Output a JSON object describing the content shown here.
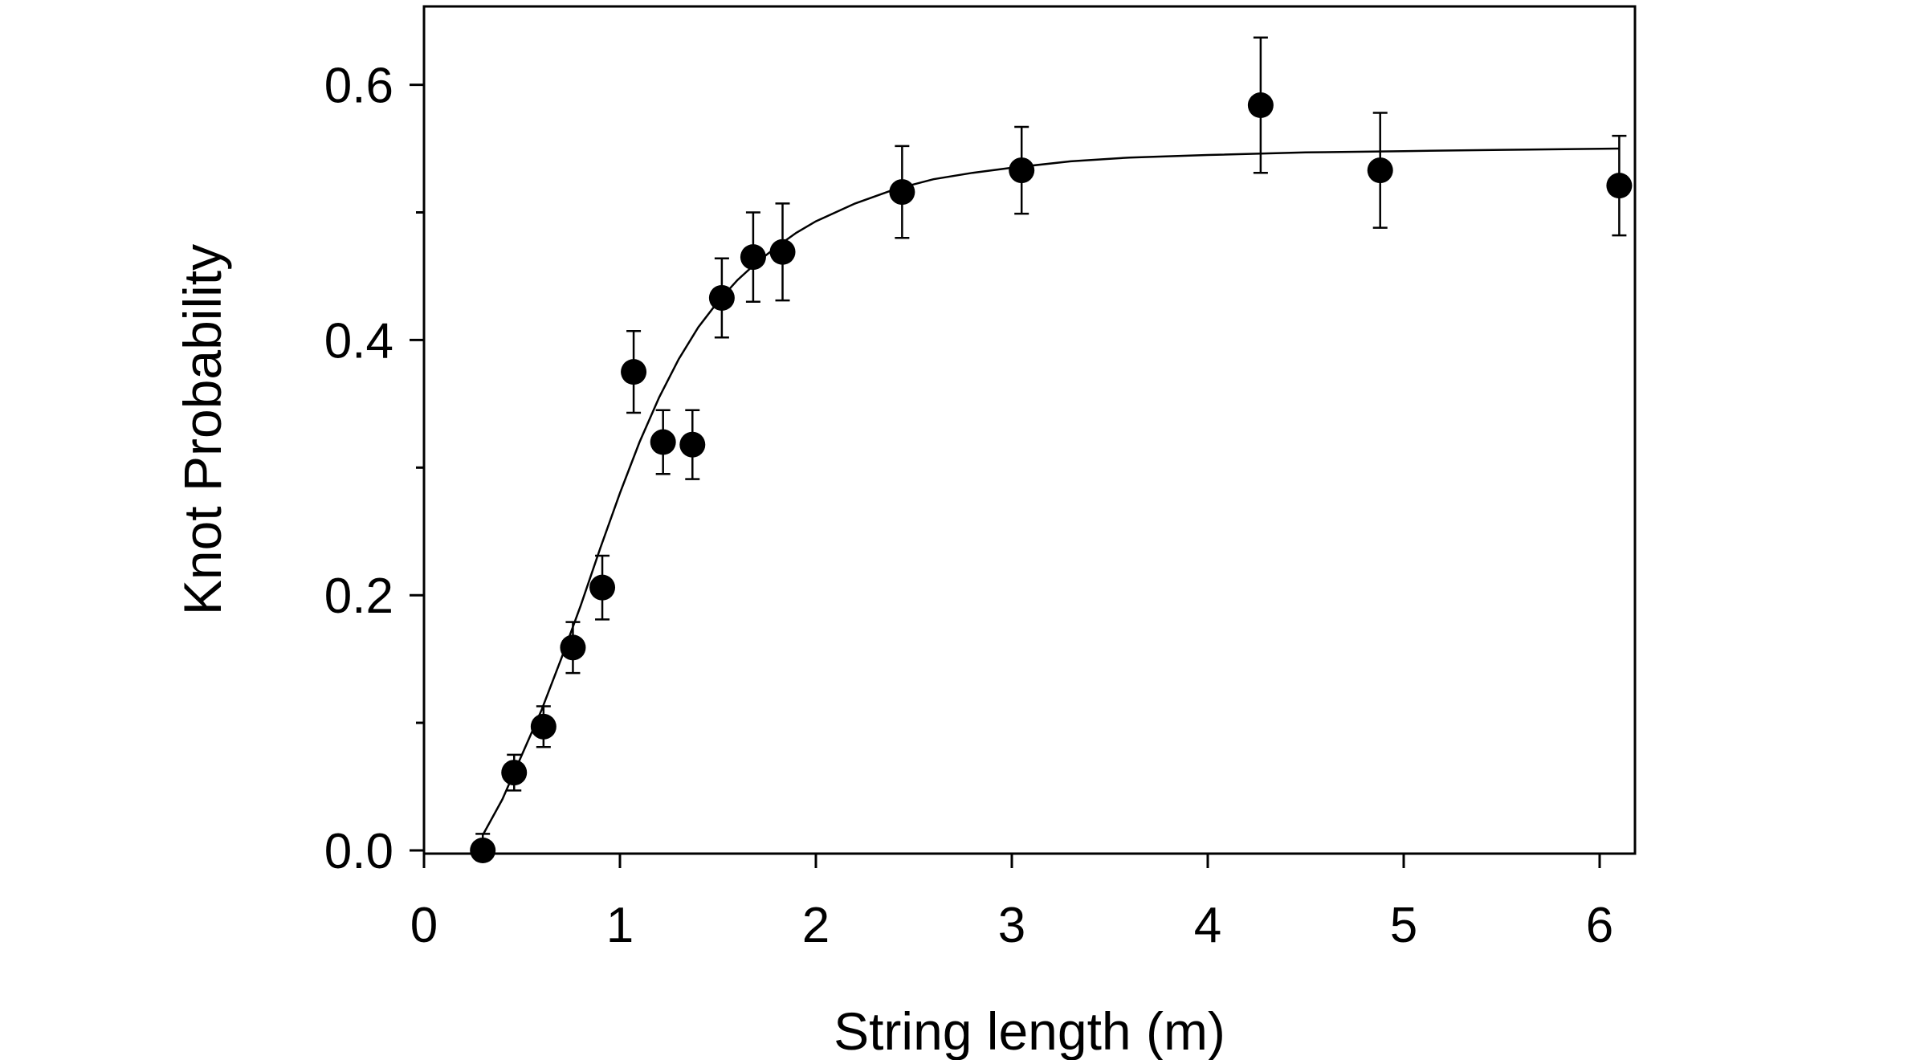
{
  "chart_data": {
    "type": "scatter",
    "xlabel": "String length (m)",
    "ylabel": "Knot Probability",
    "xlim": [
      0,
      6.2
    ],
    "ylim": [
      0,
      0.66
    ],
    "xticks": [
      "0",
      "1",
      "2",
      "3",
      "4",
      "5",
      "6"
    ],
    "xtick_values": [
      0,
      1,
      2,
      3,
      4,
      5,
      6
    ],
    "yticks": [
      "0.0",
      "0.2",
      "0.4",
      "0.6"
    ],
    "ytick_values": [
      0.0,
      0.2,
      0.4,
      0.6
    ],
    "yminor_values": [
      0.1,
      0.3,
      0.5
    ],
    "grid": false,
    "legend": "none",
    "series": [
      {
        "points": [
          {
            "x": 0.3,
            "y": 0.0,
            "err": 0.013
          },
          {
            "x": 0.46,
            "y": 0.061,
            "err": 0.014
          },
          {
            "x": 0.61,
            "y": 0.097,
            "err": 0.016
          },
          {
            "x": 0.76,
            "y": 0.159,
            "err": 0.02
          },
          {
            "x": 0.91,
            "y": 0.206,
            "err": 0.025
          },
          {
            "x": 1.07,
            "y": 0.375,
            "err": 0.032
          },
          {
            "x": 1.22,
            "y": 0.32,
            "err": 0.025
          },
          {
            "x": 1.37,
            "y": 0.318,
            "err": 0.027
          },
          {
            "x": 1.52,
            "y": 0.433,
            "err": 0.031
          },
          {
            "x": 1.68,
            "y": 0.465,
            "err": 0.035
          },
          {
            "x": 1.83,
            "y": 0.469,
            "err": 0.038
          },
          {
            "x": 2.44,
            "y": 0.516,
            "err": 0.036
          },
          {
            "x": 3.05,
            "y": 0.533,
            "err": 0.034
          },
          {
            "x": 4.27,
            "y": 0.584,
            "err": 0.053
          },
          {
            "x": 4.88,
            "y": 0.533,
            "err": 0.045
          },
          {
            "x": 6.1,
            "y": 0.521,
            "err": 0.039
          }
        ]
      }
    ],
    "fit_curve": {
      "x": [
        0.3,
        0.4,
        0.5,
        0.6,
        0.7,
        0.8,
        0.9,
        1.0,
        1.1,
        1.2,
        1.3,
        1.4,
        1.5,
        1.6,
        1.7,
        1.8,
        1.9,
        2.0,
        2.2,
        2.4,
        2.6,
        2.8,
        3.0,
        3.3,
        3.6,
        4.0,
        4.5,
        5.0,
        5.5,
        6.1
      ],
      "y": [
        0.012,
        0.04,
        0.075,
        0.11,
        0.15,
        0.192,
        0.237,
        0.28,
        0.32,
        0.355,
        0.385,
        0.41,
        0.43,
        0.447,
        0.461,
        0.473,
        0.484,
        0.493,
        0.507,
        0.518,
        0.526,
        0.531,
        0.535,
        0.54,
        0.543,
        0.545,
        0.547,
        0.548,
        0.549,
        0.55
      ]
    }
  }
}
